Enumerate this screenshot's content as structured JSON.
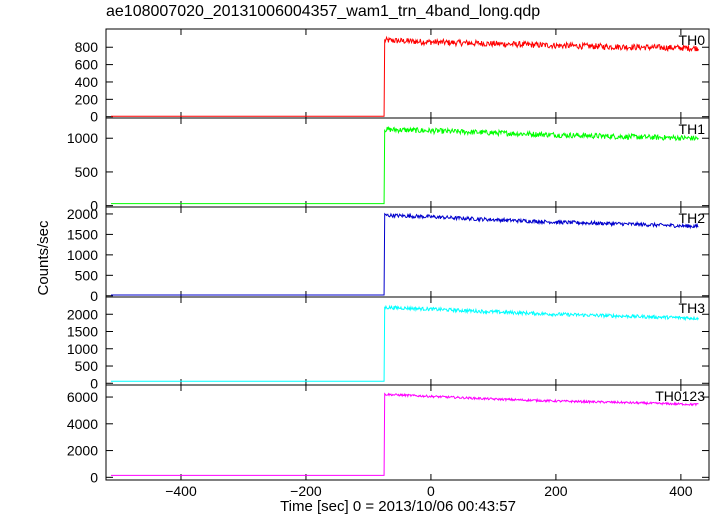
{
  "title": "ae108007020_20131006004357_wam1_trn_4band_long.qdp",
  "ylabel": "Counts/sec",
  "xlabel": "Time [sec] 0 = 2013/10/06 00:43:57",
  "chart_data": {
    "type": "line",
    "title": "ae108007020_20131006004357_wam1_trn_4band_long.qdp",
    "xlabel": "Time [sec] 0 = 2013/10/06 00:43:57",
    "ylabel": "Counts/sec",
    "xlim": [
      -520,
      445
    ],
    "xticks": [
      -400,
      -200,
      0,
      200,
      400
    ],
    "xtick_labels": [
      "−400",
      "−200",
      "0",
      "200",
      "400"
    ],
    "grid": false,
    "shared_x": true,
    "panels": [
      {
        "name": "TH0",
        "color": "#ff0000",
        "ylim": [
          -15,
          1010
        ],
        "yticks": [
          0,
          200,
          400,
          600,
          800
        ],
        "x": [
          -500,
          -80,
          -75,
          -74,
          0,
          100,
          200,
          300,
          420
        ],
        "y": [
          5,
          5,
          5,
          880,
          860,
          840,
          820,
          805,
          790
        ],
        "noise": 35
      },
      {
        "name": "TH1",
        "color": "#00ff00",
        "ylim": [
          -20,
          1300
        ],
        "yticks": [
          0,
          500,
          1000
        ],
        "x": [
          -500,
          -80,
          -75,
          -74,
          0,
          100,
          200,
          300,
          420
        ],
        "y": [
          30,
          30,
          30,
          1130,
          1110,
          1080,
          1050,
          1025,
          1000
        ],
        "noise": 40
      },
      {
        "name": "TH2",
        "color": "#0000cc",
        "ylim": [
          -30,
          2170
        ],
        "yticks": [
          0,
          500,
          1000,
          1500,
          2000
        ],
        "x": [
          -500,
          -80,
          -75,
          -74,
          0,
          100,
          200,
          300,
          420
        ],
        "y": [
          20,
          20,
          20,
          1970,
          1930,
          1860,
          1800,
          1760,
          1700
        ],
        "noise": 45
      },
      {
        "name": "TH3",
        "color": "#00ffff",
        "ylim": [
          -50,
          2500
        ],
        "yticks": [
          0,
          500,
          1000,
          1500,
          2000
        ],
        "x": [
          -500,
          -80,
          -75,
          -74,
          0,
          100,
          200,
          300,
          420
        ],
        "y": [
          60,
          60,
          60,
          2200,
          2150,
          2070,
          2000,
          1950,
          1890
        ],
        "noise": 50
      },
      {
        "name": "TH0123",
        "color": "#ff00ff",
        "ylim": [
          -200,
          6900
        ],
        "yticks": [
          0,
          2000,
          4000,
          6000
        ],
        "x": [
          -500,
          -80,
          -75,
          -74,
          0,
          100,
          200,
          300,
          420
        ],
        "y": [
          150,
          150,
          150,
          6200,
          6050,
          5850,
          5700,
          5600,
          5450
        ],
        "noise": 80
      }
    ]
  }
}
